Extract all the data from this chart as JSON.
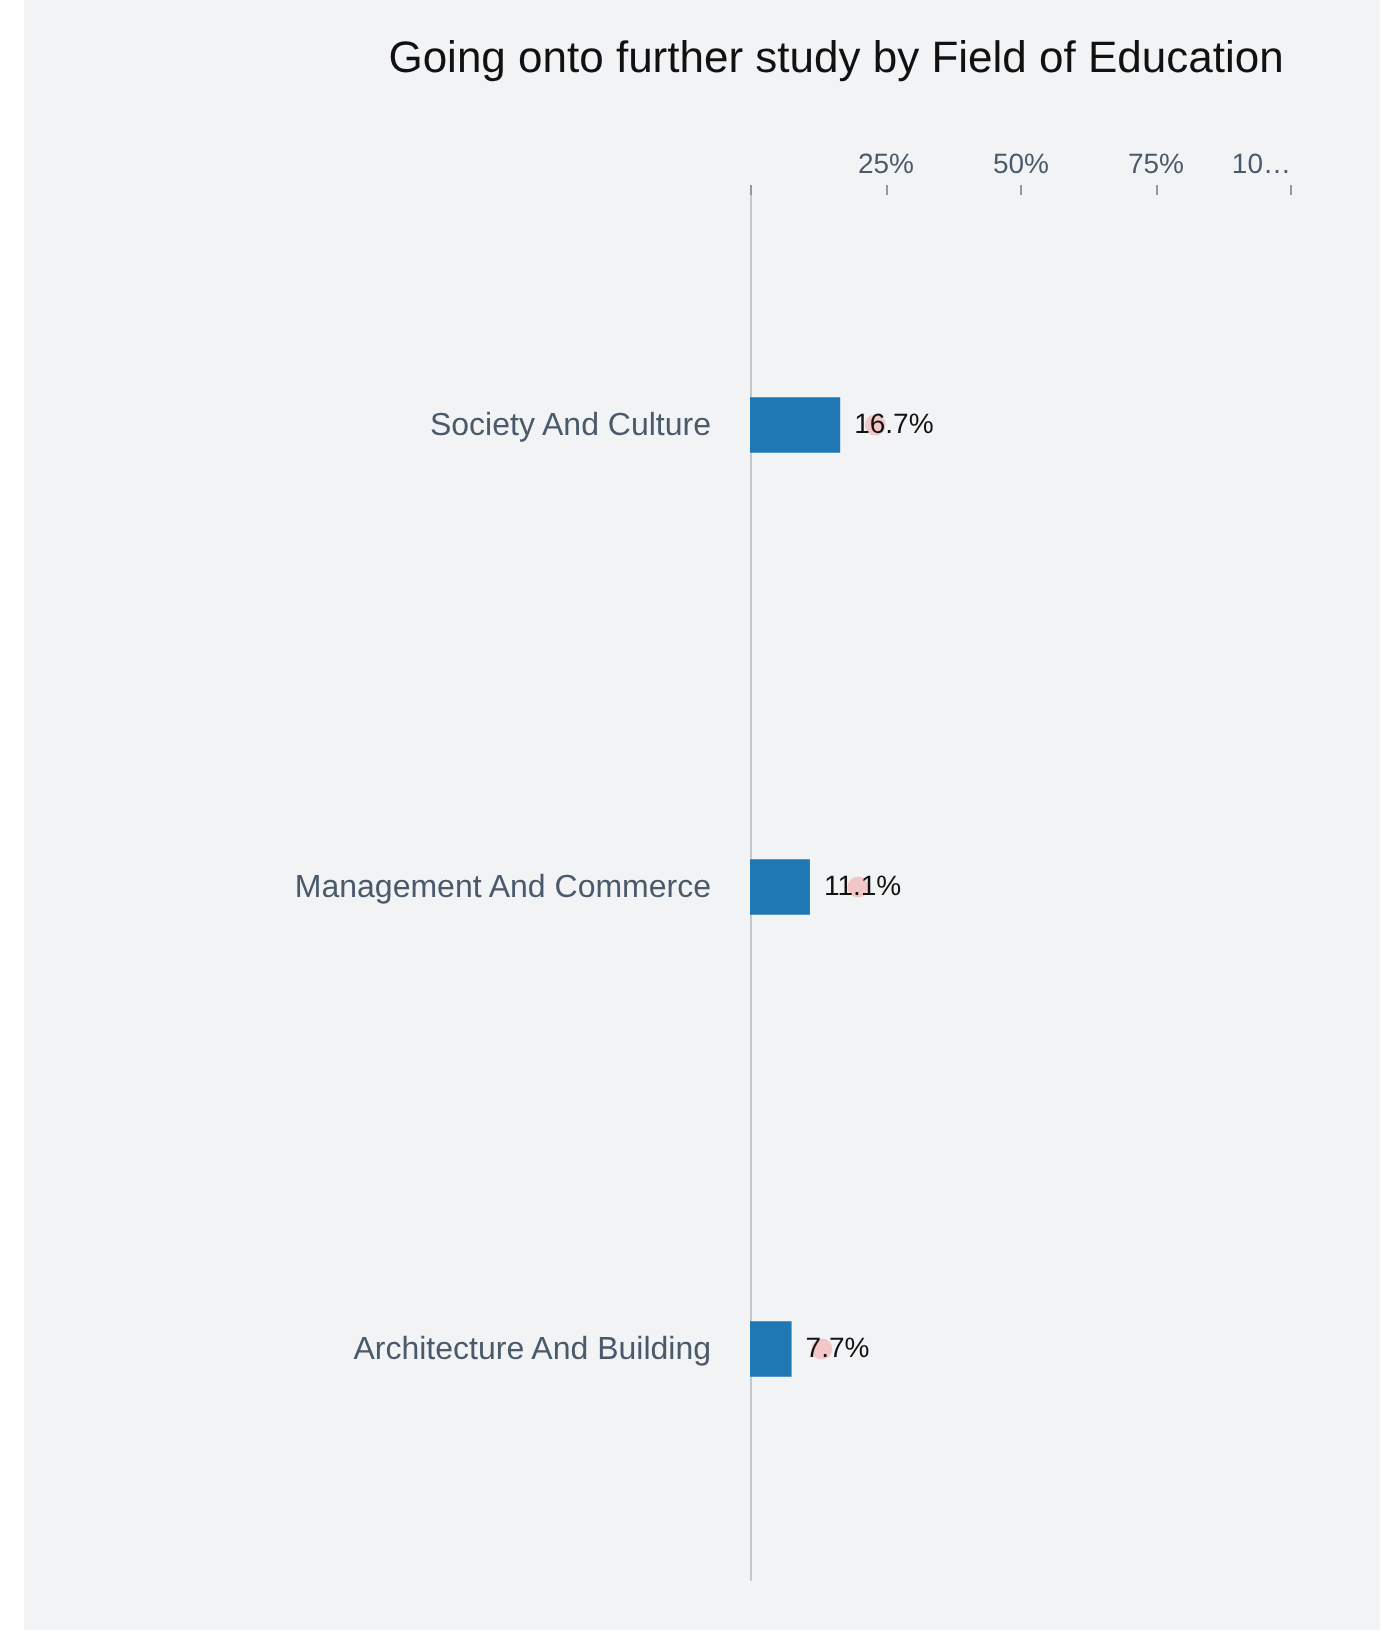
{
  "chart_data": {
    "type": "bar",
    "orientation": "horizontal",
    "title": "Going onto further study by Field of Education",
    "categories": [
      "Society And Culture",
      "Management And Commerce",
      "Architecture And Building"
    ],
    "series": [
      {
        "color": "#1f77b4",
        "values": [
          16.7,
          11.1,
          7.7
        ],
        "value_labels": [
          "16.7%",
          "11.1%",
          "7.7%"
        ]
      },
      {
        "type": "scatter",
        "color": "#f4a3a3",
        "values": [
          23.2,
          20,
          13.3
        ]
      }
    ],
    "xlim": [
      0,
      100
    ],
    "xticks": [
      {
        "value": 0,
        "label": null
      },
      {
        "value": 25,
        "label": "25%"
      },
      {
        "value": 50,
        "label": "50%"
      },
      {
        "value": 75,
        "label": "75%"
      },
      {
        "value": 100,
        "label": "10…"
      }
    ],
    "grid": false
  }
}
